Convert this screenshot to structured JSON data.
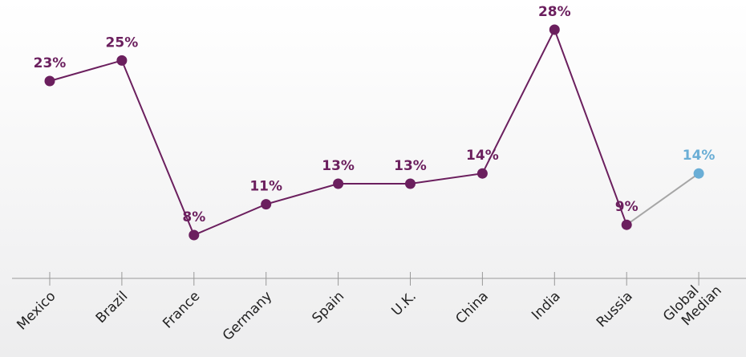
{
  "chart_data": {
    "type": "line",
    "categories": [
      "Mexico",
      "Brazil",
      "France",
      "Germany",
      "Spain",
      "U.K.",
      "China",
      "India",
      "Russia",
      "Global Median"
    ],
    "values": [
      23,
      25,
      8,
      11,
      13,
      13,
      14,
      28,
      9,
      14
    ],
    "value_labels": [
      "23%",
      "25%",
      "8%",
      "11%",
      "13%",
      "13%",
      "14%",
      "28%",
      "9%",
      "14%"
    ],
    "color": "#6b1f5e",
    "highlight_color": "#6aaed6",
    "connector_color": "#a6a6a6"
  }
}
